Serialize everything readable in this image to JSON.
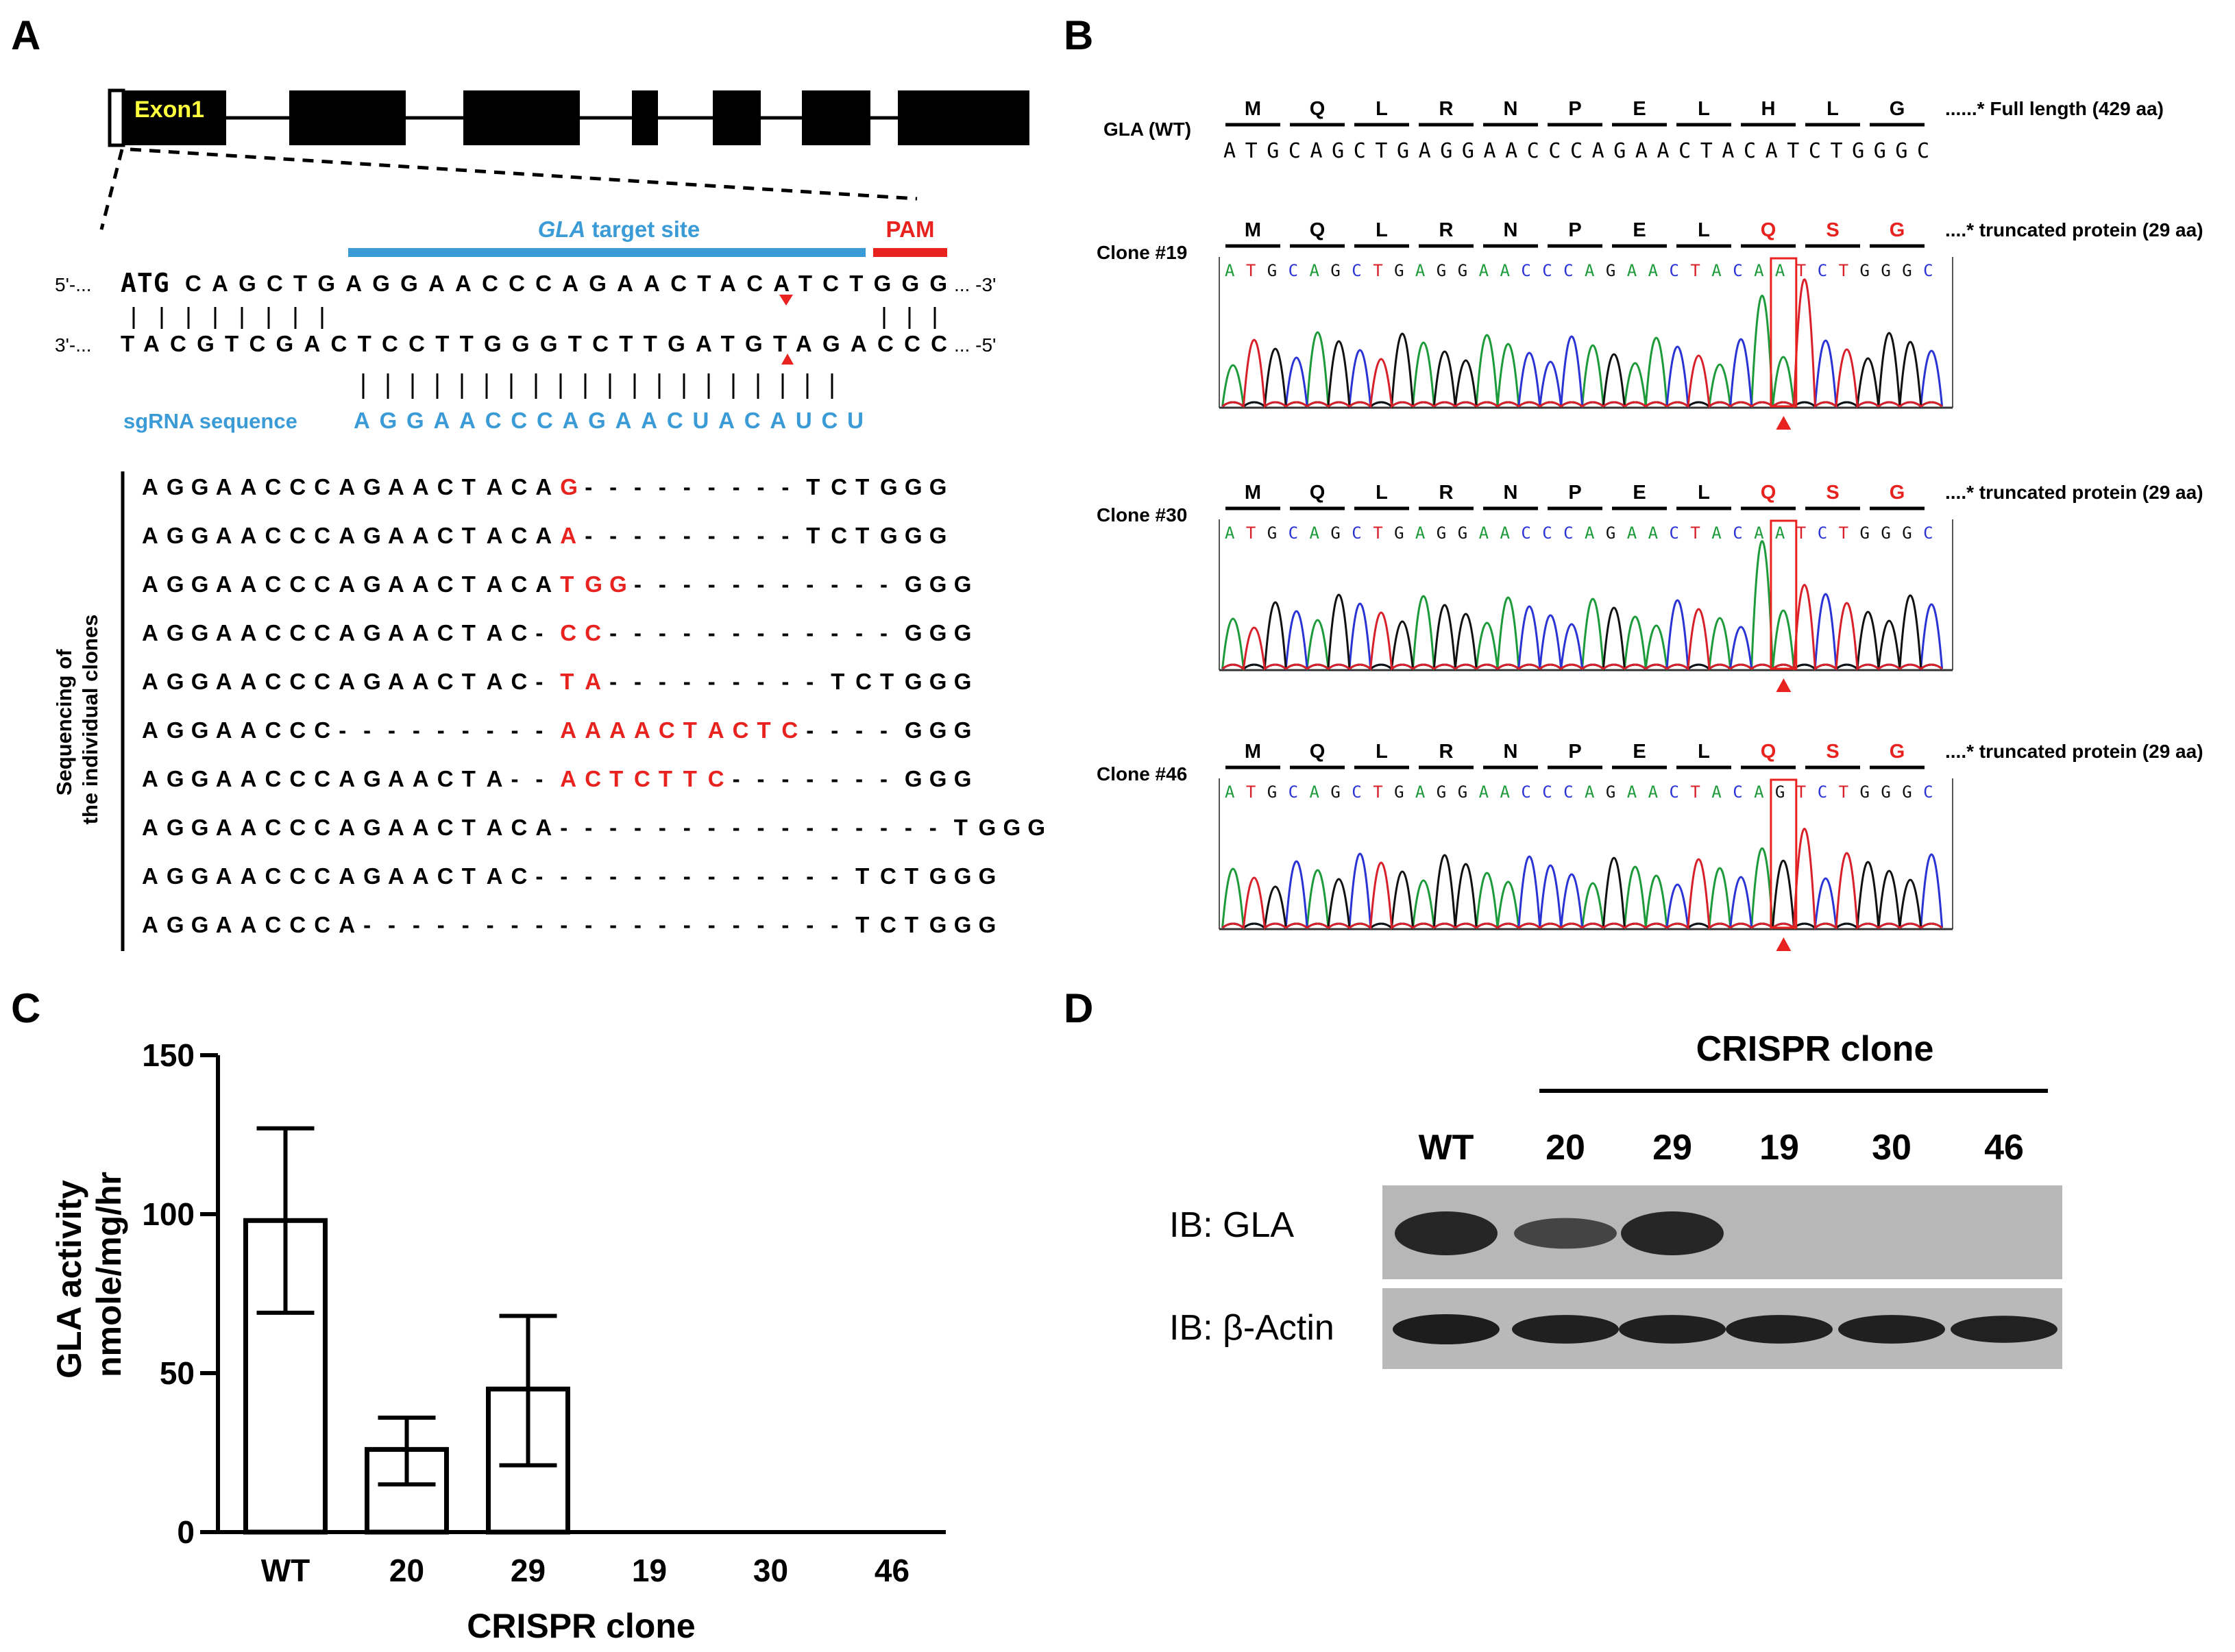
{
  "panels": {
    "A": {
      "label": "A",
      "exon_label": "Exon1",
      "target_site": {
        "italic": "GLA",
        "rest": " target site"
      },
      "pam_label": "PAM",
      "top_strand": {
        "prefix": "5'-...",
        "bold": "ATG",
        "seq": "CAGCTGAGGAACCCAGAACTACATCTGGG",
        "suffix": "... -3'"
      },
      "bottom_strand": {
        "prefix": "3'-...",
        "seq": "TACGTCGACTCCTTGGGTCTTGATGTAGACCC",
        "suffix": "... -5'"
      },
      "sgrna_label": "sgRNA sequence",
      "sgrna_seq": "AGGAACCCAGAACUACAUCU",
      "clones_label_1": "Sequencing of",
      "clones_label_2": "the individual clones",
      "clone_seqs": [
        [
          [
            "AGGAACCCAGAACTACA",
            "k"
          ],
          [
            "G",
            "r"
          ],
          [
            "---------",
            "k"
          ],
          [
            "TCTGGG",
            "k"
          ]
        ],
        [
          [
            "AGGAACCCAGAACTACA",
            "k"
          ],
          [
            "A",
            "r"
          ],
          [
            "---------",
            "k"
          ],
          [
            "TCTGGG",
            "k"
          ]
        ],
        [
          [
            "AGGAACCCAGAACTACA",
            "k"
          ],
          [
            "TGG",
            "r"
          ],
          [
            "-----------",
            "k"
          ],
          [
            "GGG",
            "k"
          ]
        ],
        [
          [
            "AGGAACCCAGAACTAC-",
            "k"
          ],
          [
            "CC",
            "r"
          ],
          [
            "------------",
            "k"
          ],
          [
            "GGG",
            "k"
          ]
        ],
        [
          [
            "AGGAACCCAGAACTAC-",
            "k"
          ],
          [
            "TA",
            "r"
          ],
          [
            "---------",
            "k"
          ],
          [
            "TCTGGG",
            "k"
          ]
        ],
        [
          [
            "AGGAACCC---------",
            "k"
          ],
          [
            "AAAACTACTC",
            "r"
          ],
          [
            "----",
            "k"
          ],
          [
            "GGG",
            "k"
          ]
        ],
        [
          [
            "AGGAACCCAGAACTA--",
            "k"
          ],
          [
            "ACTCTTC",
            "r"
          ],
          [
            "-------",
            "k"
          ],
          [
            "GGG",
            "k"
          ]
        ],
        [
          [
            "AGGAACCCAGAACTACA----------------",
            "k"
          ],
          [
            "TGGG",
            "k"
          ]
        ],
        [
          [
            "AGGAACCCAGAACTAC-------------",
            "k"
          ],
          [
            "TCTGGG",
            "k"
          ]
        ],
        [
          [
            "AGGAACCCA--------------------",
            "k"
          ],
          [
            "TCTGGG",
            "k"
          ]
        ]
      ]
    },
    "B": {
      "label": "B",
      "wt": {
        "name": "GLA (WT)",
        "aa": [
          "M",
          "Q",
          "L",
          "R",
          "N",
          "P",
          "E",
          "L",
          "H",
          "L",
          "G"
        ],
        "note": "......* Full length (429 aa)",
        "seq": "ATGCAGCTGAGGAACCCAGAACTACATCTGGGC"
      },
      "clones": [
        {
          "name": "Clone #19",
          "note": "....* truncated protein (29 aa)",
          "seq": "ATGCAGCTGAGGAACCCAGAACTACAATCTGGGC"
        },
        {
          "name": "Clone #30",
          "note": "....* truncated protein (29 aa)",
          "seq": "ATGCAGCTGAGGAACCCAGAACTACAATCTGGGC"
        },
        {
          "name": "Clone #46",
          "note": "....* truncated protein (29 aa)",
          "seq": "ATGCAGCTGAGGAACCCAGAACTACAGTCTGGGC"
        }
      ],
      "mut_aa": [
        "M",
        "Q",
        "L",
        "R",
        "N",
        "P",
        "E",
        "L",
        "Q",
        "S",
        "G"
      ]
    },
    "C": {
      "label": "C"
    },
    "D": {
      "label": "D",
      "header": "CRISPR clone",
      "lanes": [
        "WT",
        "20",
        "29",
        "19",
        "30",
        "46"
      ],
      "row1_label": "IB: GLA",
      "row2_label": "IB: β-Actin",
      "gla_level": [
        1.0,
        0.6,
        1.0,
        0,
        0,
        0
      ],
      "actin_level": [
        1.0,
        0.95,
        0.95,
        0.95,
        0.95,
        0.9
      ]
    }
  },
  "chart_data": {
    "type": "bar",
    "categories": [
      "WT",
      "20",
      "29",
      "19",
      "30",
      "46"
    ],
    "values": [
      98,
      26,
      45,
      0,
      0,
      0
    ],
    "errors": [
      [
        69,
        127
      ],
      [
        15,
        36
      ],
      [
        21,
        68
      ],
      null,
      null,
      null
    ],
    "xlabel": "CRISPR clone",
    "ylabel_line1": "GLA activity",
    "ylabel_line2": "nmole/mg/hr",
    "ylim": [
      0,
      150
    ],
    "yticks": [
      "0",
      "50",
      "100",
      "150"
    ]
  },
  "colors": {
    "red": "#e8231f",
    "blue": "#3b9bd6",
    "yellow": "#ffff3c",
    "A": "#1d9a3a",
    "C": "#2a34d4",
    "G": "#111111",
    "T": "#d8202a"
  }
}
